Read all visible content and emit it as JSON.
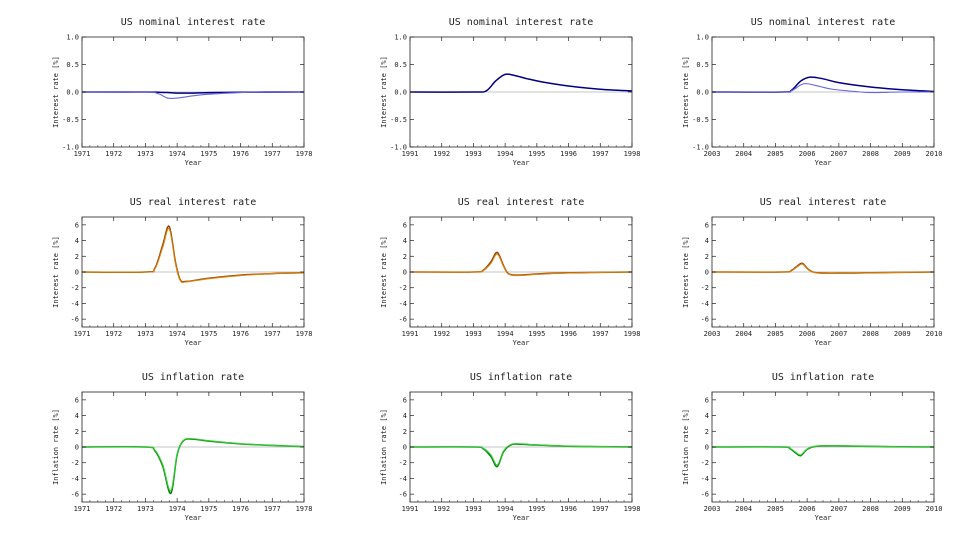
{
  "chart_data": [
    {
      "type": "line",
      "title": "US nominal interest rate",
      "xlabel": "Year",
      "ylabel": "Interest rate [%]",
      "xlim": [
        1971,
        1978
      ],
      "ylim": [
        -1,
        1
      ],
      "xticks": [
        "1971",
        "1972",
        "1973",
        "1974",
        "1975",
        "1976",
        "1977",
        "1978"
      ],
      "yticks": [
        "-1.0",
        "-0.5",
        "0.0",
        "0.5",
        "1.0"
      ],
      "grid": false,
      "zero_line": true,
      "series": [
        {
          "color": "#000080",
          "x": [
            1971,
            1973.0,
            1973.4,
            1973.7,
            1974.0,
            1974.5,
            1975,
            1976,
            1977,
            1978
          ],
          "y": [
            0,
            0,
            -0.005,
            -0.01,
            -0.02,
            -0.02,
            -0.012,
            -0.005,
            0,
            0
          ]
        },
        {
          "color": "#6666dd",
          "x": [
            1971,
            1973.0,
            1973.4,
            1973.7,
            1974.0,
            1974.5,
            1975,
            1976,
            1977,
            1978
          ],
          "y": [
            0,
            0,
            -0.03,
            -0.11,
            -0.11,
            -0.07,
            -0.04,
            -0.01,
            0.005,
            0
          ]
        }
      ]
    },
    {
      "type": "line",
      "title": "US nominal interest rate",
      "xlabel": "Year",
      "ylabel": "Interest rate [%]",
      "xlim": [
        1991,
        1998
      ],
      "ylim": [
        -1,
        1
      ],
      "xticks": [
        "1991",
        "1992",
        "1993",
        "1994",
        "1995",
        "1996",
        "1997",
        "1998"
      ],
      "yticks": [
        "-1.0",
        "-0.5",
        "0.0",
        "0.5",
        "1.0"
      ],
      "grid": false,
      "zero_line": true,
      "series": [
        {
          "color": "#000080",
          "x": [
            1991,
            1993.0,
            1993.4,
            1993.7,
            1994.0,
            1994.3,
            1994.7,
            1995.2,
            1996,
            1997,
            1998
          ],
          "y": [
            0,
            0,
            0.02,
            0.2,
            0.32,
            0.3,
            0.24,
            0.18,
            0.11,
            0.05,
            0.02
          ]
        }
      ]
    },
    {
      "type": "line",
      "title": "US nominal interest rate",
      "xlabel": "Year",
      "ylabel": "Interest rate [%]",
      "xlim": [
        2003,
        2010
      ],
      "ylim": [
        -1,
        1
      ],
      "xticks": [
        "2003",
        "2004",
        "2005",
        "2006",
        "2007",
        "2008",
        "2009",
        "2010"
      ],
      "yticks": [
        "-1.0",
        "-0.5",
        "0.0",
        "0.5",
        "1.0"
      ],
      "grid": false,
      "zero_line": true,
      "series": [
        {
          "color": "#000080",
          "x": [
            2003,
            2005.2,
            2005.5,
            2005.8,
            2006.1,
            2006.5,
            2007,
            2008,
            2009,
            2010
          ],
          "y": [
            0,
            0,
            0.03,
            0.2,
            0.27,
            0.24,
            0.17,
            0.09,
            0.04,
            0.01
          ]
        },
        {
          "color": "#6666dd",
          "x": [
            2003,
            2005.2,
            2005.5,
            2005.8,
            2006.0,
            2006.4,
            2006.8,
            2007.5,
            2008,
            2009,
            2010
          ],
          "y": [
            0,
            0,
            0.02,
            0.13,
            0.15,
            0.1,
            0.05,
            0.01,
            -0.01,
            0,
            0
          ]
        }
      ]
    },
    {
      "type": "line",
      "title": "US real interest rate",
      "xlabel": "Year",
      "ylabel": "Interest rate [%]",
      "xlim": [
        1971,
        1978
      ],
      "ylim": [
        -7,
        7
      ],
      "xticks": [
        "1971",
        "1972",
        "1973",
        "1974",
        "1975",
        "1976",
        "1977",
        "1978"
      ],
      "yticks": [
        "-6",
        "-4",
        "-2",
        "0",
        "2",
        "4",
        "6"
      ],
      "grid": false,
      "zero_line": true,
      "series": [
        {
          "color": "#8b4513",
          "x": [
            1971,
            1973.0,
            1973.3,
            1973.55,
            1973.75,
            1973.95,
            1974.1,
            1974.3,
            1975,
            1976,
            1977,
            1978
          ],
          "y": [
            0,
            0,
            0.5,
            3.5,
            5.8,
            1.2,
            -1.0,
            -1.2,
            -0.8,
            -0.4,
            -0.2,
            -0.1
          ]
        },
        {
          "color": "#e08000",
          "x": [
            1971,
            1973.0,
            1973.3,
            1973.55,
            1973.75,
            1973.95,
            1974.1,
            1974.3,
            1975,
            1976,
            1977,
            1978
          ],
          "y": [
            0,
            0,
            0.4,
            3.2,
            5.5,
            1.0,
            -1.1,
            -1.25,
            -0.85,
            -0.45,
            -0.2,
            -0.1
          ]
        }
      ]
    },
    {
      "type": "line",
      "title": "US real interest rate",
      "xlabel": "Year",
      "ylabel": "Interest rate [%]",
      "xlim": [
        1991,
        1998
      ],
      "ylim": [
        -7,
        7
      ],
      "xticks": [
        "1991",
        "1992",
        "1993",
        "1994",
        "1995",
        "1996",
        "1997",
        "1998"
      ],
      "yticks": [
        "-6",
        "-4",
        "-2",
        "0",
        "2",
        "4",
        "6"
      ],
      "grid": false,
      "zero_line": true,
      "series": [
        {
          "color": "#8b4513",
          "x": [
            1991,
            1993.0,
            1993.3,
            1993.55,
            1993.75,
            1993.95,
            1994.1,
            1994.4,
            1995,
            1996,
            1997,
            1998
          ],
          "y": [
            0,
            0,
            0.2,
            1.3,
            2.5,
            0.8,
            -0.2,
            -0.4,
            -0.25,
            -0.1,
            -0.05,
            0
          ]
        },
        {
          "color": "#e08000",
          "x": [
            1991,
            1993.0,
            1993.3,
            1993.55,
            1993.75,
            1993.95,
            1994.1,
            1994.4,
            1995,
            1996,
            1997,
            1998
          ],
          "y": [
            0,
            0,
            0.15,
            1.1,
            2.3,
            0.7,
            -0.25,
            -0.45,
            -0.3,
            -0.12,
            -0.05,
            0
          ]
        }
      ]
    },
    {
      "type": "line",
      "title": "US real interest rate",
      "xlabel": "Year",
      "ylabel": "Interest rate [%]",
      "xlim": [
        2003,
        2010
      ],
      "ylim": [
        -7,
        7
      ],
      "xticks": [
        "2003",
        "2004",
        "2005",
        "2006",
        "2007",
        "2008",
        "2009",
        "2010"
      ],
      "yticks": [
        "-6",
        "-4",
        "-2",
        "0",
        "2",
        "4",
        "6"
      ],
      "grid": false,
      "zero_line": true,
      "series": [
        {
          "color": "#8b4513",
          "x": [
            2003,
            2005.2,
            2005.5,
            2005.7,
            2005.85,
            2006.05,
            2006.3,
            2007,
            2008,
            2009,
            2010
          ],
          "y": [
            0,
            0,
            0.2,
            0.8,
            1.1,
            0.3,
            -0.1,
            -0.15,
            -0.1,
            -0.05,
            0
          ]
        },
        {
          "color": "#e08000",
          "x": [
            2003,
            2005.2,
            2005.5,
            2005.7,
            2005.85,
            2006.05,
            2006.3,
            2007,
            2008,
            2009,
            2010
          ],
          "y": [
            0,
            0,
            0.15,
            0.7,
            1.0,
            0.25,
            -0.12,
            -0.17,
            -0.1,
            -0.05,
            0
          ]
        }
      ]
    },
    {
      "type": "line",
      "title": "US inflation rate",
      "xlabel": "Year",
      "ylabel": "Inflation rate [%]",
      "xlim": [
        1971,
        1978
      ],
      "ylim": [
        -7,
        7
      ],
      "xticks": [
        "1971",
        "1972",
        "1973",
        "1974",
        "1975",
        "1976",
        "1977",
        "1978"
      ],
      "yticks": [
        "-6",
        "-4",
        "-2",
        "0",
        "2",
        "4",
        "6"
      ],
      "grid": false,
      "zero_line": true,
      "series": [
        {
          "color": "#008000",
          "x": [
            1971,
            1973.0,
            1973.3,
            1973.55,
            1973.8,
            1974.0,
            1974.2,
            1974.5,
            1975,
            1976,
            1977,
            1978
          ],
          "y": [
            0,
            0,
            -0.5,
            -2.5,
            -5.9,
            -1.0,
            0.8,
            1.0,
            0.75,
            0.4,
            0.2,
            0.05
          ]
        },
        {
          "color": "#33cc33",
          "x": [
            1971,
            1973.0,
            1973.3,
            1973.55,
            1973.8,
            1974.0,
            1974.2,
            1974.5,
            1975,
            1976,
            1977,
            1978
          ],
          "y": [
            0,
            0,
            -0.4,
            -2.3,
            -5.6,
            -0.9,
            0.85,
            1.05,
            0.8,
            0.42,
            0.2,
            0.05
          ]
        }
      ]
    },
    {
      "type": "line",
      "title": "US inflation rate",
      "xlabel": "Year",
      "ylabel": "Inflation rate [%]",
      "xlim": [
        1991,
        1998
      ],
      "ylim": [
        -7,
        7
      ],
      "xticks": [
        "1991",
        "1992",
        "1993",
        "1994",
        "1995",
        "1996",
        "1997",
        "1998"
      ],
      "yticks": [
        "-6",
        "-4",
        "-2",
        "0",
        "2",
        "4",
        "6"
      ],
      "grid": false,
      "zero_line": true,
      "series": [
        {
          "color": "#008000",
          "x": [
            1991,
            1993.0,
            1993.3,
            1993.55,
            1993.75,
            1993.95,
            1994.2,
            1994.5,
            1995,
            1996,
            1997,
            1998
          ],
          "y": [
            0,
            0,
            -0.2,
            -1.2,
            -2.5,
            -0.6,
            0.3,
            0.35,
            0.25,
            0.1,
            0.05,
            0
          ]
        },
        {
          "color": "#33cc33",
          "x": [
            1991,
            1993.0,
            1993.3,
            1993.55,
            1993.75,
            1993.95,
            1994.2,
            1994.5,
            1995,
            1996,
            1997,
            1998
          ],
          "y": [
            0,
            0,
            -0.15,
            -1.0,
            -2.3,
            -0.5,
            0.35,
            0.4,
            0.28,
            0.1,
            0.05,
            0
          ]
        }
      ]
    },
    {
      "type": "line",
      "title": "US inflation rate",
      "xlabel": "Year",
      "ylabel": "Inflation rate [%]",
      "xlim": [
        2003,
        2010
      ],
      "ylim": [
        -7,
        7
      ],
      "xticks": [
        "2003",
        "2004",
        "2005",
        "2006",
        "2007",
        "2008",
        "2009",
        "2010"
      ],
      "yticks": [
        "-6",
        "-4",
        "-2",
        "0",
        "2",
        "4",
        "6"
      ],
      "grid": false,
      "zero_line": true,
      "series": [
        {
          "color": "#008000",
          "x": [
            2003,
            2005.2,
            2005.45,
            2005.65,
            2005.8,
            2006.0,
            2006.3,
            2007,
            2008,
            2009,
            2010
          ],
          "y": [
            0,
            0,
            -0.2,
            -0.8,
            -1.1,
            -0.3,
            0.1,
            0.15,
            0.08,
            0.03,
            0
          ]
        },
        {
          "color": "#33cc33",
          "x": [
            2003,
            2005.2,
            2005.45,
            2005.65,
            2005.8,
            2006.0,
            2006.3,
            2007,
            2008,
            2009,
            2010
          ],
          "y": [
            0,
            0,
            -0.15,
            -0.7,
            -1.0,
            -0.25,
            0.12,
            0.17,
            0.08,
            0.03,
            0
          ]
        }
      ]
    }
  ]
}
